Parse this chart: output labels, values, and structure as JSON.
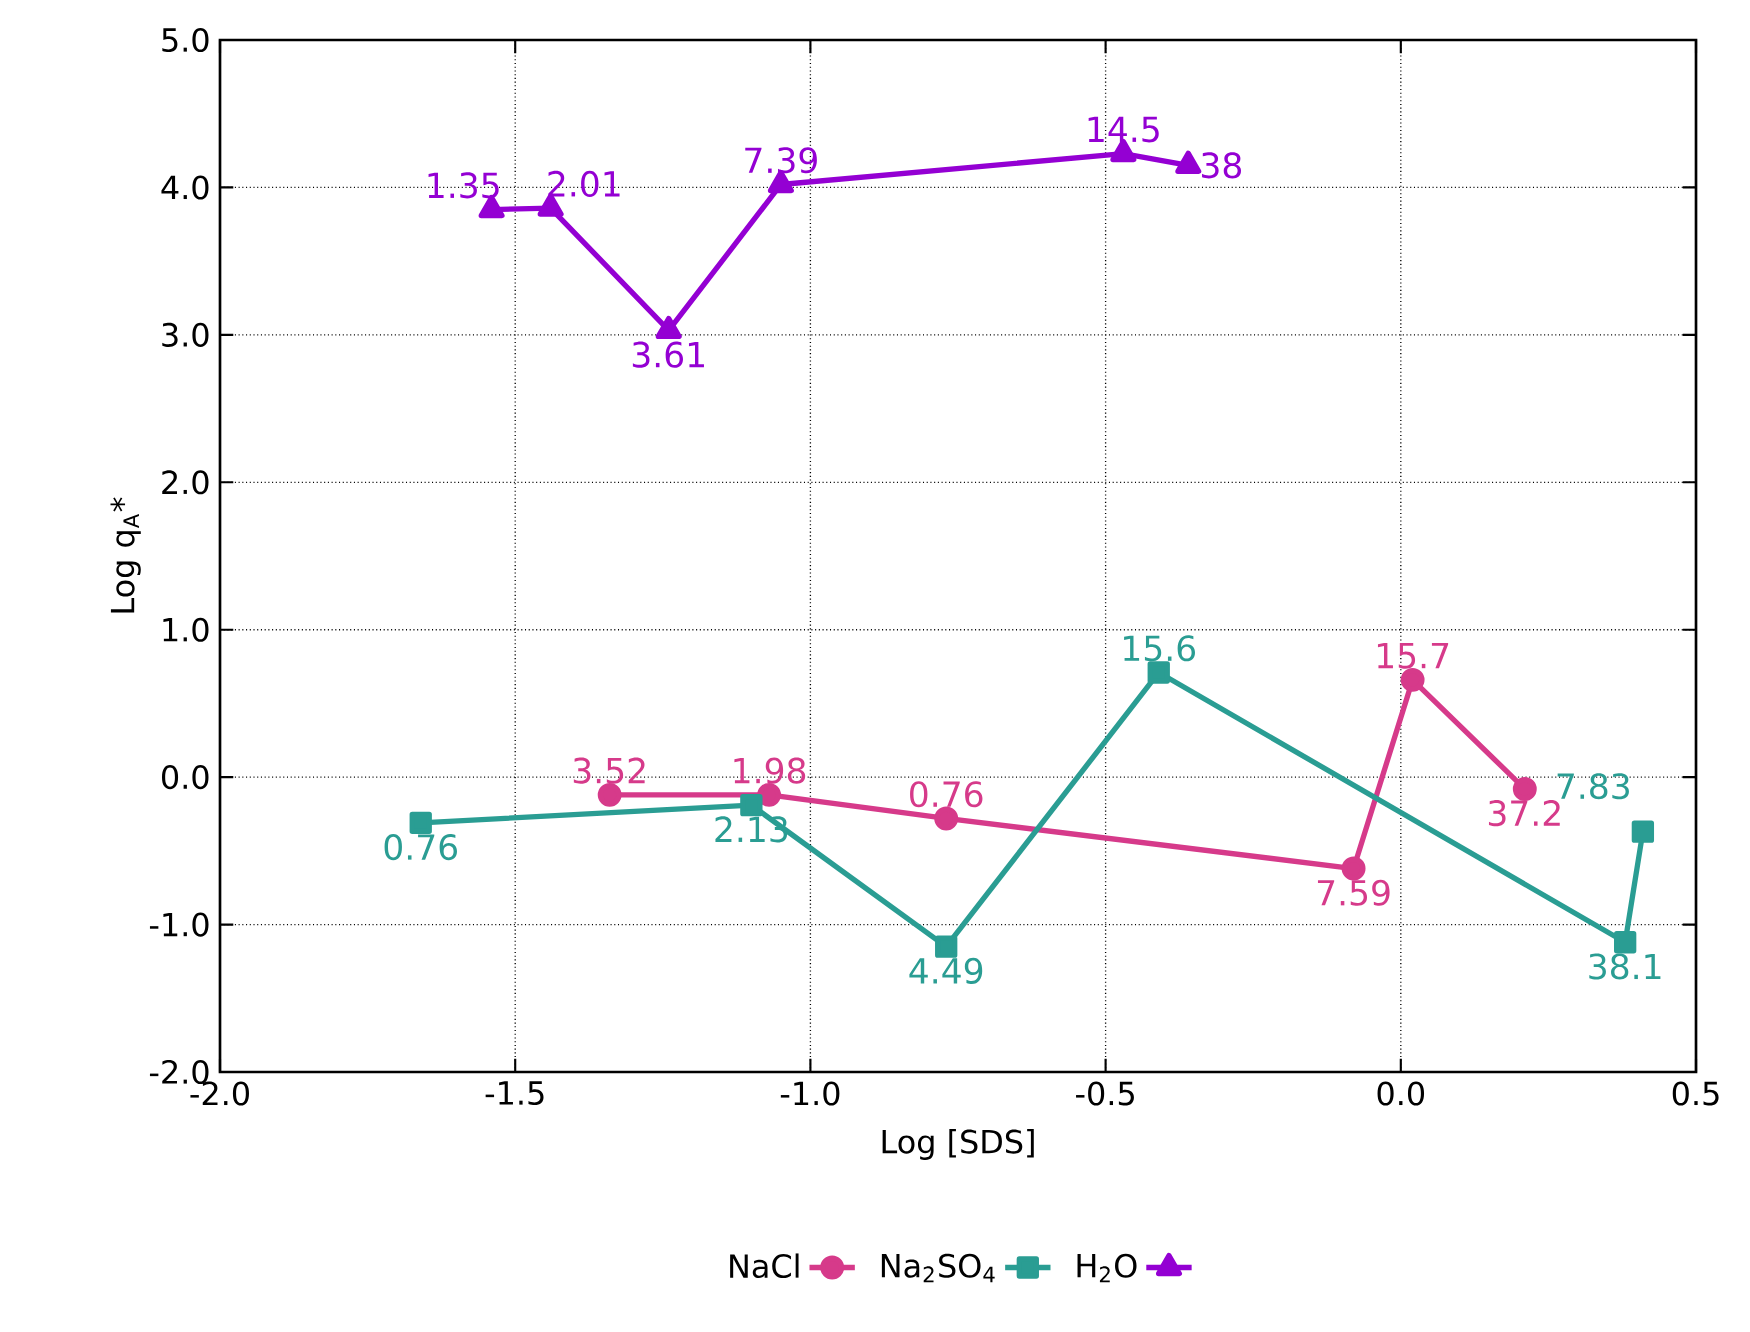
{
  "chart_data": {
    "type": "line",
    "xlabel": "Log [SDS]",
    "ylabel": "Log q$_{A}$*",
    "xlim": [
      -2.0,
      0.5
    ],
    "ylim": [
      -2.0,
      5.0
    ],
    "xticks": [
      {
        "value": -2.0,
        "label": "-2.0"
      },
      -1.5,
      {
        "value": -1.0,
        "label": "-1.0"
      },
      -0.5,
      {
        "value": 0.0,
        "label": "0.0"
      },
      0.5
    ],
    "yticks": [
      {
        "value": -2.0,
        "label": "-2.0"
      },
      {
        "value": -1.0,
        "label": "-1.0"
      },
      {
        "value": 0.0,
        "label": "0.0"
      },
      {
        "value": 1.0,
        "label": "1.0"
      },
      {
        "value": 2.0,
        "label": "2.0"
      },
      {
        "value": 3.0,
        "label": "3.0"
      },
      {
        "value": 4.0,
        "label": "4.0"
      },
      {
        "value": 5.0,
        "label": "5.0"
      }
    ],
    "grid": true,
    "legend": "bottom",
    "line_style": "solid",
    "series": [
      {
        "name": "NaCl",
        "color": "#d63a8a",
        "marker": "circle",
        "x": [
          -1.34,
          -1.07,
          -0.77,
          -0.08,
          0.02,
          0.21
        ],
        "values": [
          -0.12,
          -0.12,
          -0.28,
          -0.62,
          0.66,
          -0.08
        ]
      },
      {
        "name": "Na$_{2}$SO$_{4}$",
        "color": "#2a9d93",
        "marker": "square",
        "x": [
          -1.66,
          -1.1,
          -0.77,
          -0.41,
          0.38,
          0.41
        ],
        "values": [
          -0.31,
          -0.19,
          -1.15,
          0.71,
          -1.12,
          -0.37
        ]
      },
      {
        "name": "H$_{2}$O",
        "color": "#9400d3",
        "marker": "triangle",
        "x": [
          -1.54,
          -1.44,
          -1.24,
          -1.05,
          -0.47,
          -0.36
        ],
        "values": [
          3.85,
          3.86,
          3.03,
          4.02,
          4.23,
          4.15
        ]
      }
    ],
    "annotations": [
      {
        "text": "3.52",
        "x": -1.34,
        "y": -0.12
      },
      {
        "text": "1.98",
        "x": -1.07,
        "y": -0.12
      },
      {
        "text": "0.76",
        "x": -0.77,
        "y": -0.28
      },
      {
        "text": "7.59",
        "x": -0.08,
        "y": -0.62
      },
      {
        "text": "15.7",
        "x": 0.02,
        "y": 0.66
      },
      {
        "text": "37.2",
        "x": 0.21,
        "y": -0.08
      },
      {
        "text": "0.76",
        "x": -1.66,
        "y": -0.31
      },
      {
        "text": "2.13",
        "x": -1.1,
        "y": -0.19
      },
      {
        "text": "4.49",
        "x": -0.77,
        "y": -1.15
      },
      {
        "text": "15.6",
        "x": -0.41,
        "y": 0.71
      },
      {
        "text": "38.1",
        "x": 0.38,
        "y": -1.12
      },
      {
        "text": "7.83",
        "x": 0.41,
        "y": -0.37
      },
      {
        "text": "1.35",
        "x": -1.54,
        "y": 3.85
      },
      {
        "text": "2.01",
        "x": -1.44,
        "y": 3.86
      },
      {
        "text": "3.61",
        "x": -1.24,
        "y": 3.03
      },
      {
        "text": "7.39",
        "x": -1.05,
        "y": 4.02
      },
      {
        "text": "14.5",
        "x": -0.47,
        "y": 4.23
      },
      {
        "text": "38",
        "x": -0.36,
        "y": 4.15
      }
    ]
  }
}
